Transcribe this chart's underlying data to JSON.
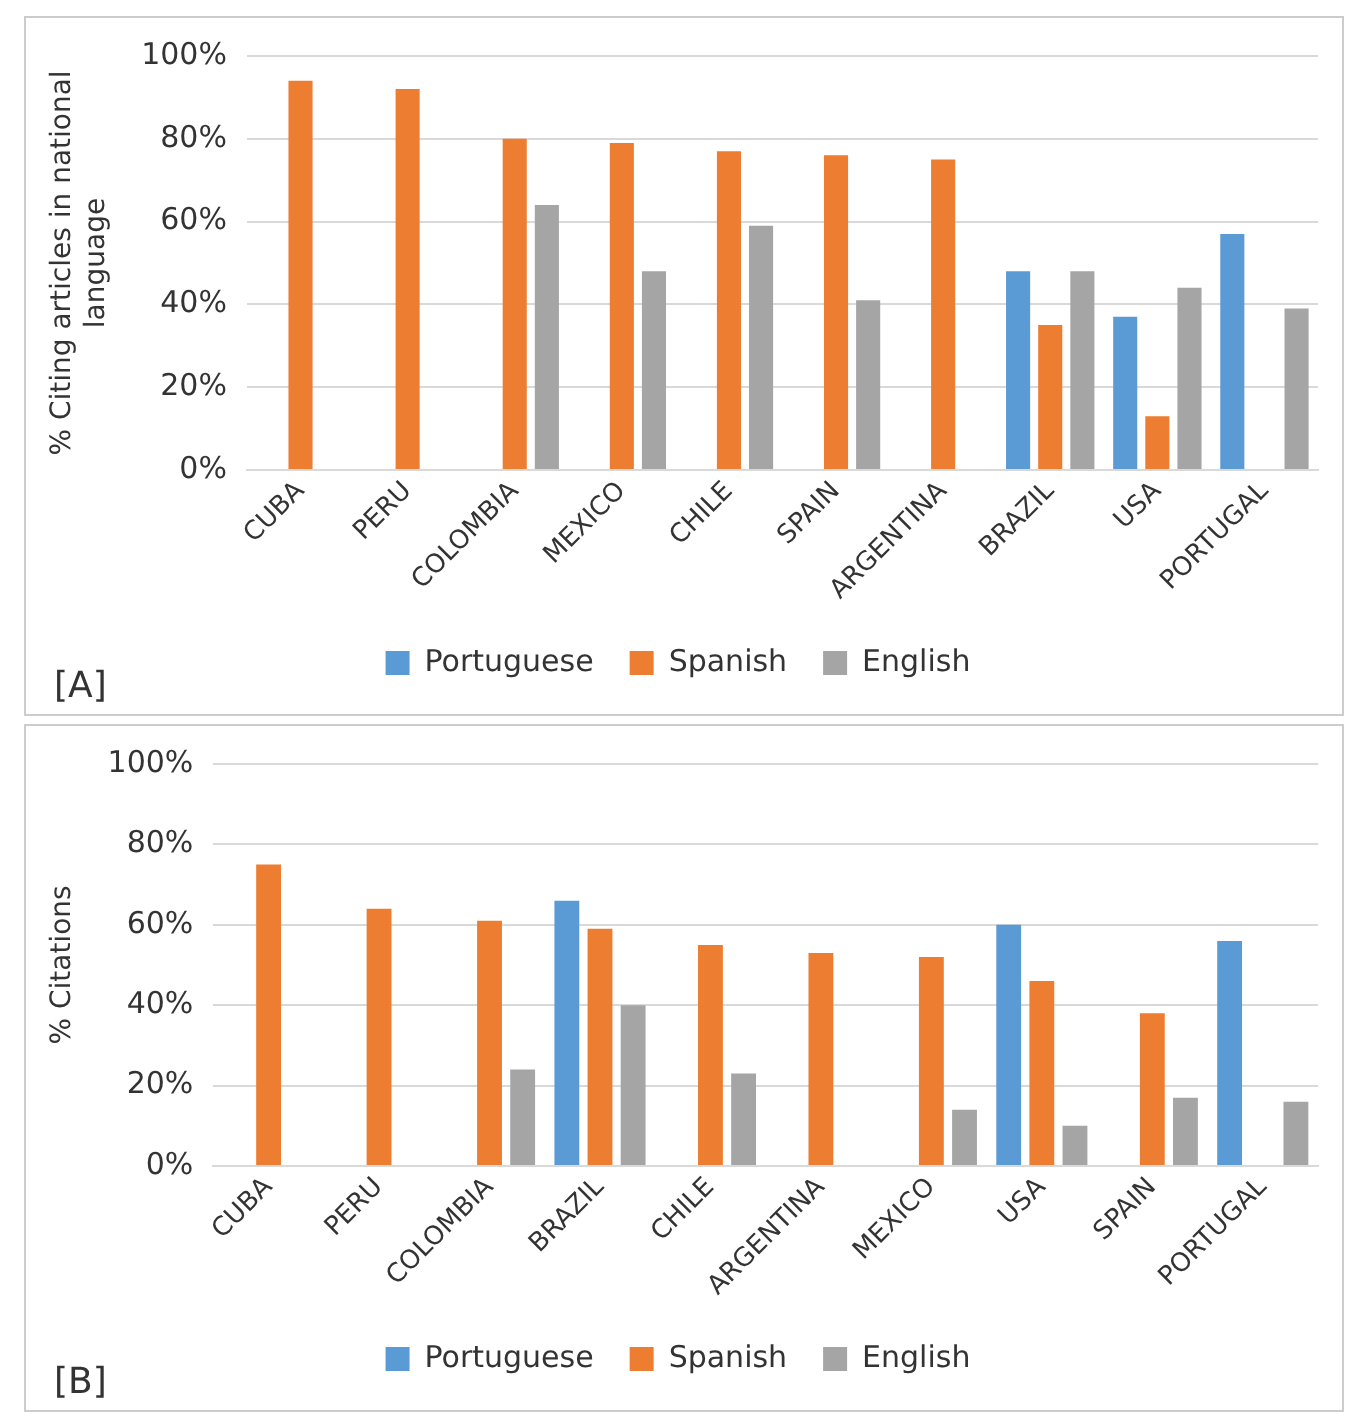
{
  "chart_data": [
    {
      "type": "bar",
      "ylabel": "% Citing articles in national language",
      "categories": [
        "CUBA",
        "PERU",
        "COLOMBIA",
        "MEXICO",
        "CHILE",
        "SPAIN",
        "ARGENTINA",
        "BRAZIL",
        "USA",
        "PORTUGAL"
      ],
      "series": [
        {
          "name": "Portuguese",
          "color": "#5b9bd5",
          "values": [
            null,
            null,
            null,
            null,
            null,
            null,
            null,
            48,
            37,
            57
          ]
        },
        {
          "name": "Spanish",
          "color": "#ed7d31",
          "values": [
            94,
            92,
            80,
            79,
            77,
            76,
            75,
            35,
            13,
            null
          ]
        },
        {
          "name": "English",
          "color": "#a5a5a5",
          "values": [
            null,
            null,
            64,
            48,
            59,
            41,
            null,
            48,
            44,
            39
          ]
        }
      ],
      "ylim": [
        0,
        100
      ],
      "yticks": [
        {
          "value": 0,
          "label": "0%"
        },
        {
          "value": 20,
          "label": "20%"
        },
        {
          "value": 40,
          "label": "40%"
        },
        {
          "value": 60,
          "label": "60%"
        },
        {
          "value": 80,
          "label": "80%"
        },
        {
          "value": 100,
          "label": "100%"
        }
      ],
      "grid": "y",
      "legend": "bottom",
      "annotations": [
        "[A]"
      ]
    },
    {
      "type": "bar",
      "ylabel": "% Citations",
      "categories": [
        "CUBA",
        "PERU",
        "COLOMBIA",
        "BRAZIL",
        "CHILE",
        "ARGENTINA",
        "MEXICO",
        "USA",
        "SPAIN",
        "PORTUGAL"
      ],
      "series": [
        {
          "name": "Portuguese",
          "color": "#5b9bd5",
          "values": [
            null,
            null,
            null,
            66,
            null,
            null,
            null,
            60,
            null,
            56
          ]
        },
        {
          "name": "Spanish",
          "color": "#ed7d31",
          "values": [
            75,
            64,
            61,
            59,
            55,
            53,
            52,
            46,
            38,
            null
          ]
        },
        {
          "name": "English",
          "color": "#a5a5a5",
          "values": [
            null,
            null,
            24,
            40,
            23,
            null,
            14,
            10,
            17,
            16
          ]
        }
      ],
      "ylim": [
        0,
        100
      ],
      "yticks": [
        {
          "value": 0,
          "label": "0%"
        },
        {
          "value": 20,
          "label": "20%"
        },
        {
          "value": 40,
          "label": "40%"
        },
        {
          "value": 60,
          "label": "60%"
        },
        {
          "value": 80,
          "label": "80%"
        },
        {
          "value": 100,
          "label": "100%"
        }
      ],
      "grid": "y",
      "legend": "bottom",
      "annotations": [
        "[B]"
      ]
    }
  ]
}
